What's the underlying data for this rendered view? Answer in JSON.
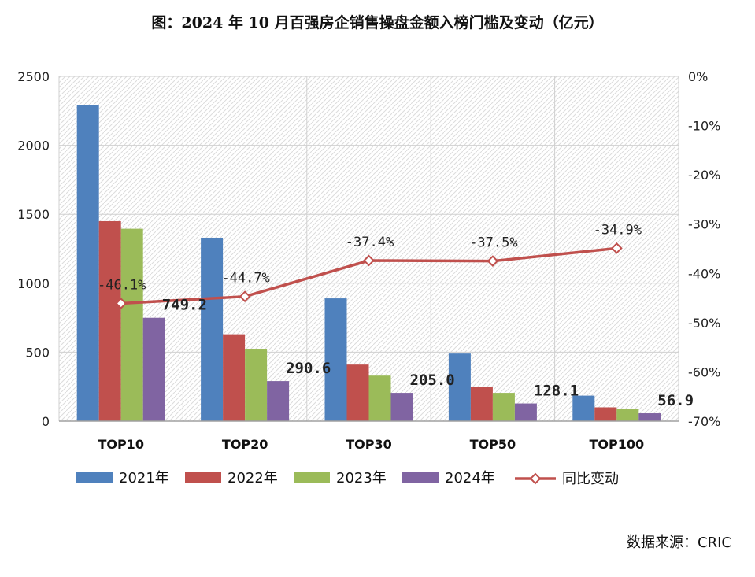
{
  "chart_data": {
    "type": "bar",
    "title": "图：2024 年 10 月百强房企销售操盘金额入榜门槛及变动（亿元）",
    "categories": [
      "TOP10",
      "TOP20",
      "TOP30",
      "TOP50",
      "TOP100"
    ],
    "series": [
      {
        "name": "2021年",
        "color": "#4f81bd",
        "values": [
          2290,
          1330,
          890,
          490,
          185
        ]
      },
      {
        "name": "2022年",
        "color": "#c0504d",
        "values": [
          1450,
          630,
          410,
          250,
          100
        ]
      },
      {
        "name": "2023年",
        "color": "#9bbb59",
        "values": [
          1395,
          525,
          330,
          205,
          90
        ]
      },
      {
        "name": "2024年",
        "color": "#8064a2",
        "values": [
          749.2,
          290.6,
          205.0,
          128.1,
          56.9
        ]
      }
    ],
    "line_series": {
      "name": "同比变动",
      "color": "#c0504d",
      "axis": "right",
      "values": [
        -46.1,
        -44.7,
        -37.4,
        -37.5,
        -34.9
      ]
    },
    "bar_labels": [
      "749.2",
      "290.6",
      "205.0",
      "128.1",
      "56.9"
    ],
    "line_labels": [
      "-46.1%",
      "-44.7%",
      "-37.4%",
      "-37.5%",
      "-34.9%"
    ],
    "left_axis": {
      "min": 0,
      "max": 2500,
      "ticks": [
        "0",
        "500",
        "1000",
        "1500",
        "2000",
        "2500"
      ]
    },
    "right_axis": {
      "min": -70,
      "max": 0,
      "ticks": [
        "0%",
        "-10%",
        "-20%",
        "-30%",
        "-40%",
        "-50%",
        "-60%",
        "-70%"
      ]
    },
    "legend_position": "bottom"
  },
  "source_note": "数据来源：CRIC"
}
